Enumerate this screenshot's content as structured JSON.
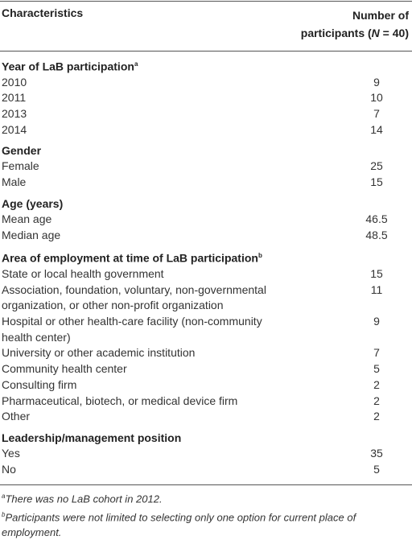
{
  "table": {
    "header": {
      "characteristics": "Characteristics",
      "participants": {
        "line1": "Number of",
        "line2_before": "participants (",
        "line2_italic": "N",
        "line2_after": " = 40)"
      }
    },
    "sections": [
      {
        "title": "Year of LaB participation",
        "note": "a",
        "rows": [
          {
            "label": "2010",
            "value": 9
          },
          {
            "label": "2011",
            "value": 10
          },
          {
            "label": "2013",
            "value": 7
          },
          {
            "label": "2014",
            "value": 14
          }
        ]
      },
      {
        "title": "Gender",
        "rows": [
          {
            "label": "Female",
            "value": 25
          },
          {
            "label": "Male",
            "value": 15
          }
        ]
      },
      {
        "title": "Age (years)",
        "rows": [
          {
            "label": "Mean age",
            "value": 46.5
          },
          {
            "label": "Median age",
            "value": 48.5
          }
        ]
      },
      {
        "title": "Area of employment at time of LaB participation",
        "note": "b",
        "rows": [
          {
            "label": "State or local health government",
            "value": 15
          },
          {
            "label": "Association, foundation, voluntary, non-governmental organization, or other non-profit organization",
            "value": 11
          },
          {
            "label": "Hospital or other health-care facility (non-community health center)",
            "value": 9
          },
          {
            "label": "University or other academic institution",
            "value": 7
          },
          {
            "label": "Community health center",
            "value": 5
          },
          {
            "label": "Consulting firm",
            "value": 2
          },
          {
            "label": "Pharmaceutical, biotech, or medical device firm",
            "value": 2
          },
          {
            "label": "Other",
            "value": 2
          }
        ]
      },
      {
        "title": "Leadership/management position",
        "rows": [
          {
            "label": "Yes",
            "value": 35
          },
          {
            "label": "No",
            "value": 5
          }
        ]
      }
    ],
    "footnotes": [
      {
        "mark": "a",
        "text": "There was no LaB cohort in 2012."
      },
      {
        "mark": "b",
        "text": "Participants were not limited to selecting only one option for current place of employment."
      }
    ]
  }
}
